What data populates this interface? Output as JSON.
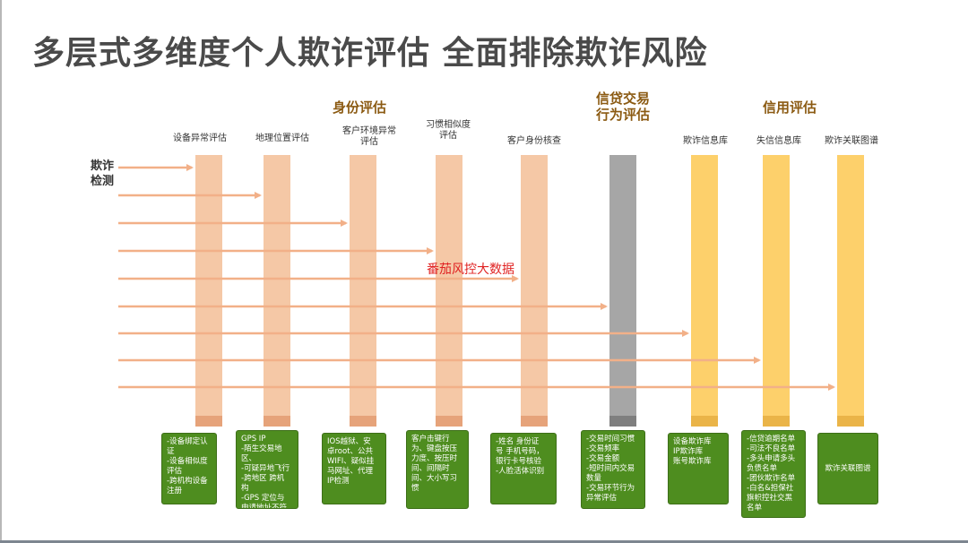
{
  "title": "多层式多维度个人欺诈评估 全面排除欺诈风险",
  "side_label": "欺诈\n检测",
  "groups": {
    "identity": "身份评估",
    "credit_behavior": "信贷交易\n行为评估",
    "credit": "信用评估"
  },
  "columns": [
    {
      "label": "设备异常评估",
      "card": "-设备绑定认\n证\n-设备相似度\n评估\n-跨机构设备\n注册"
    },
    {
      "label": "地理位置评估",
      "card": "GPS IP\n-陌生交易地\n区、\n-可疑异地飞行\n-跨地区 跨机\n构\n-GPS 定位与\n申请地址不符"
    },
    {
      "label": "客户环境异常\n评估",
      "card": "IOS越狱、安\n卓root、公共\nWIFI、疑似挂\n马网址、代理\nIP检测"
    },
    {
      "label": "习惯相似度\n评估",
      "card": "客户击键行\n为、键盘按压\n力度、按压时\n间、间隔时\n间、大小写习\n惯"
    },
    {
      "label": "客户身份核查",
      "card": "-姓名 身份证\n号 手机号码，\n银行卡号核验\n-人脸活体识别"
    },
    {
      "label": "",
      "card": "-交易时间习惯\n-交易频率\n-交易金额\n-短时间内交易\n数量\n-交易环节行为\n异常评估"
    },
    {
      "label": "欺诈信息库",
      "card": "设备欺诈库\nIP欺诈库\n账号欺诈库"
    },
    {
      "label": "失信信息库",
      "card": "-信贷逾期名单\n-司法不良名单\n-多头申请多头\n负债名单\n-团伙欺诈名单\n-白名&担保社\n旗帜控社交黑\n名单"
    },
    {
      "label": "欺诈关联图谱",
      "card": "欺诈关联图谱"
    }
  ],
  "watermark": "番茄风控大数据",
  "colors": {
    "bar_identity": "#f5c8a6",
    "cap_identity": "#e6a37a",
    "bar_credit_behavior": "#a6a6a6",
    "cap_credit_behavior": "#7f7f7f",
    "bar_credit": "#fdd06b",
    "cap_credit": "#eab448",
    "arrow": "#f2b088",
    "card": "#4e8d1f",
    "group_text": "#8b5a12",
    "watermark": "#e02222"
  }
}
